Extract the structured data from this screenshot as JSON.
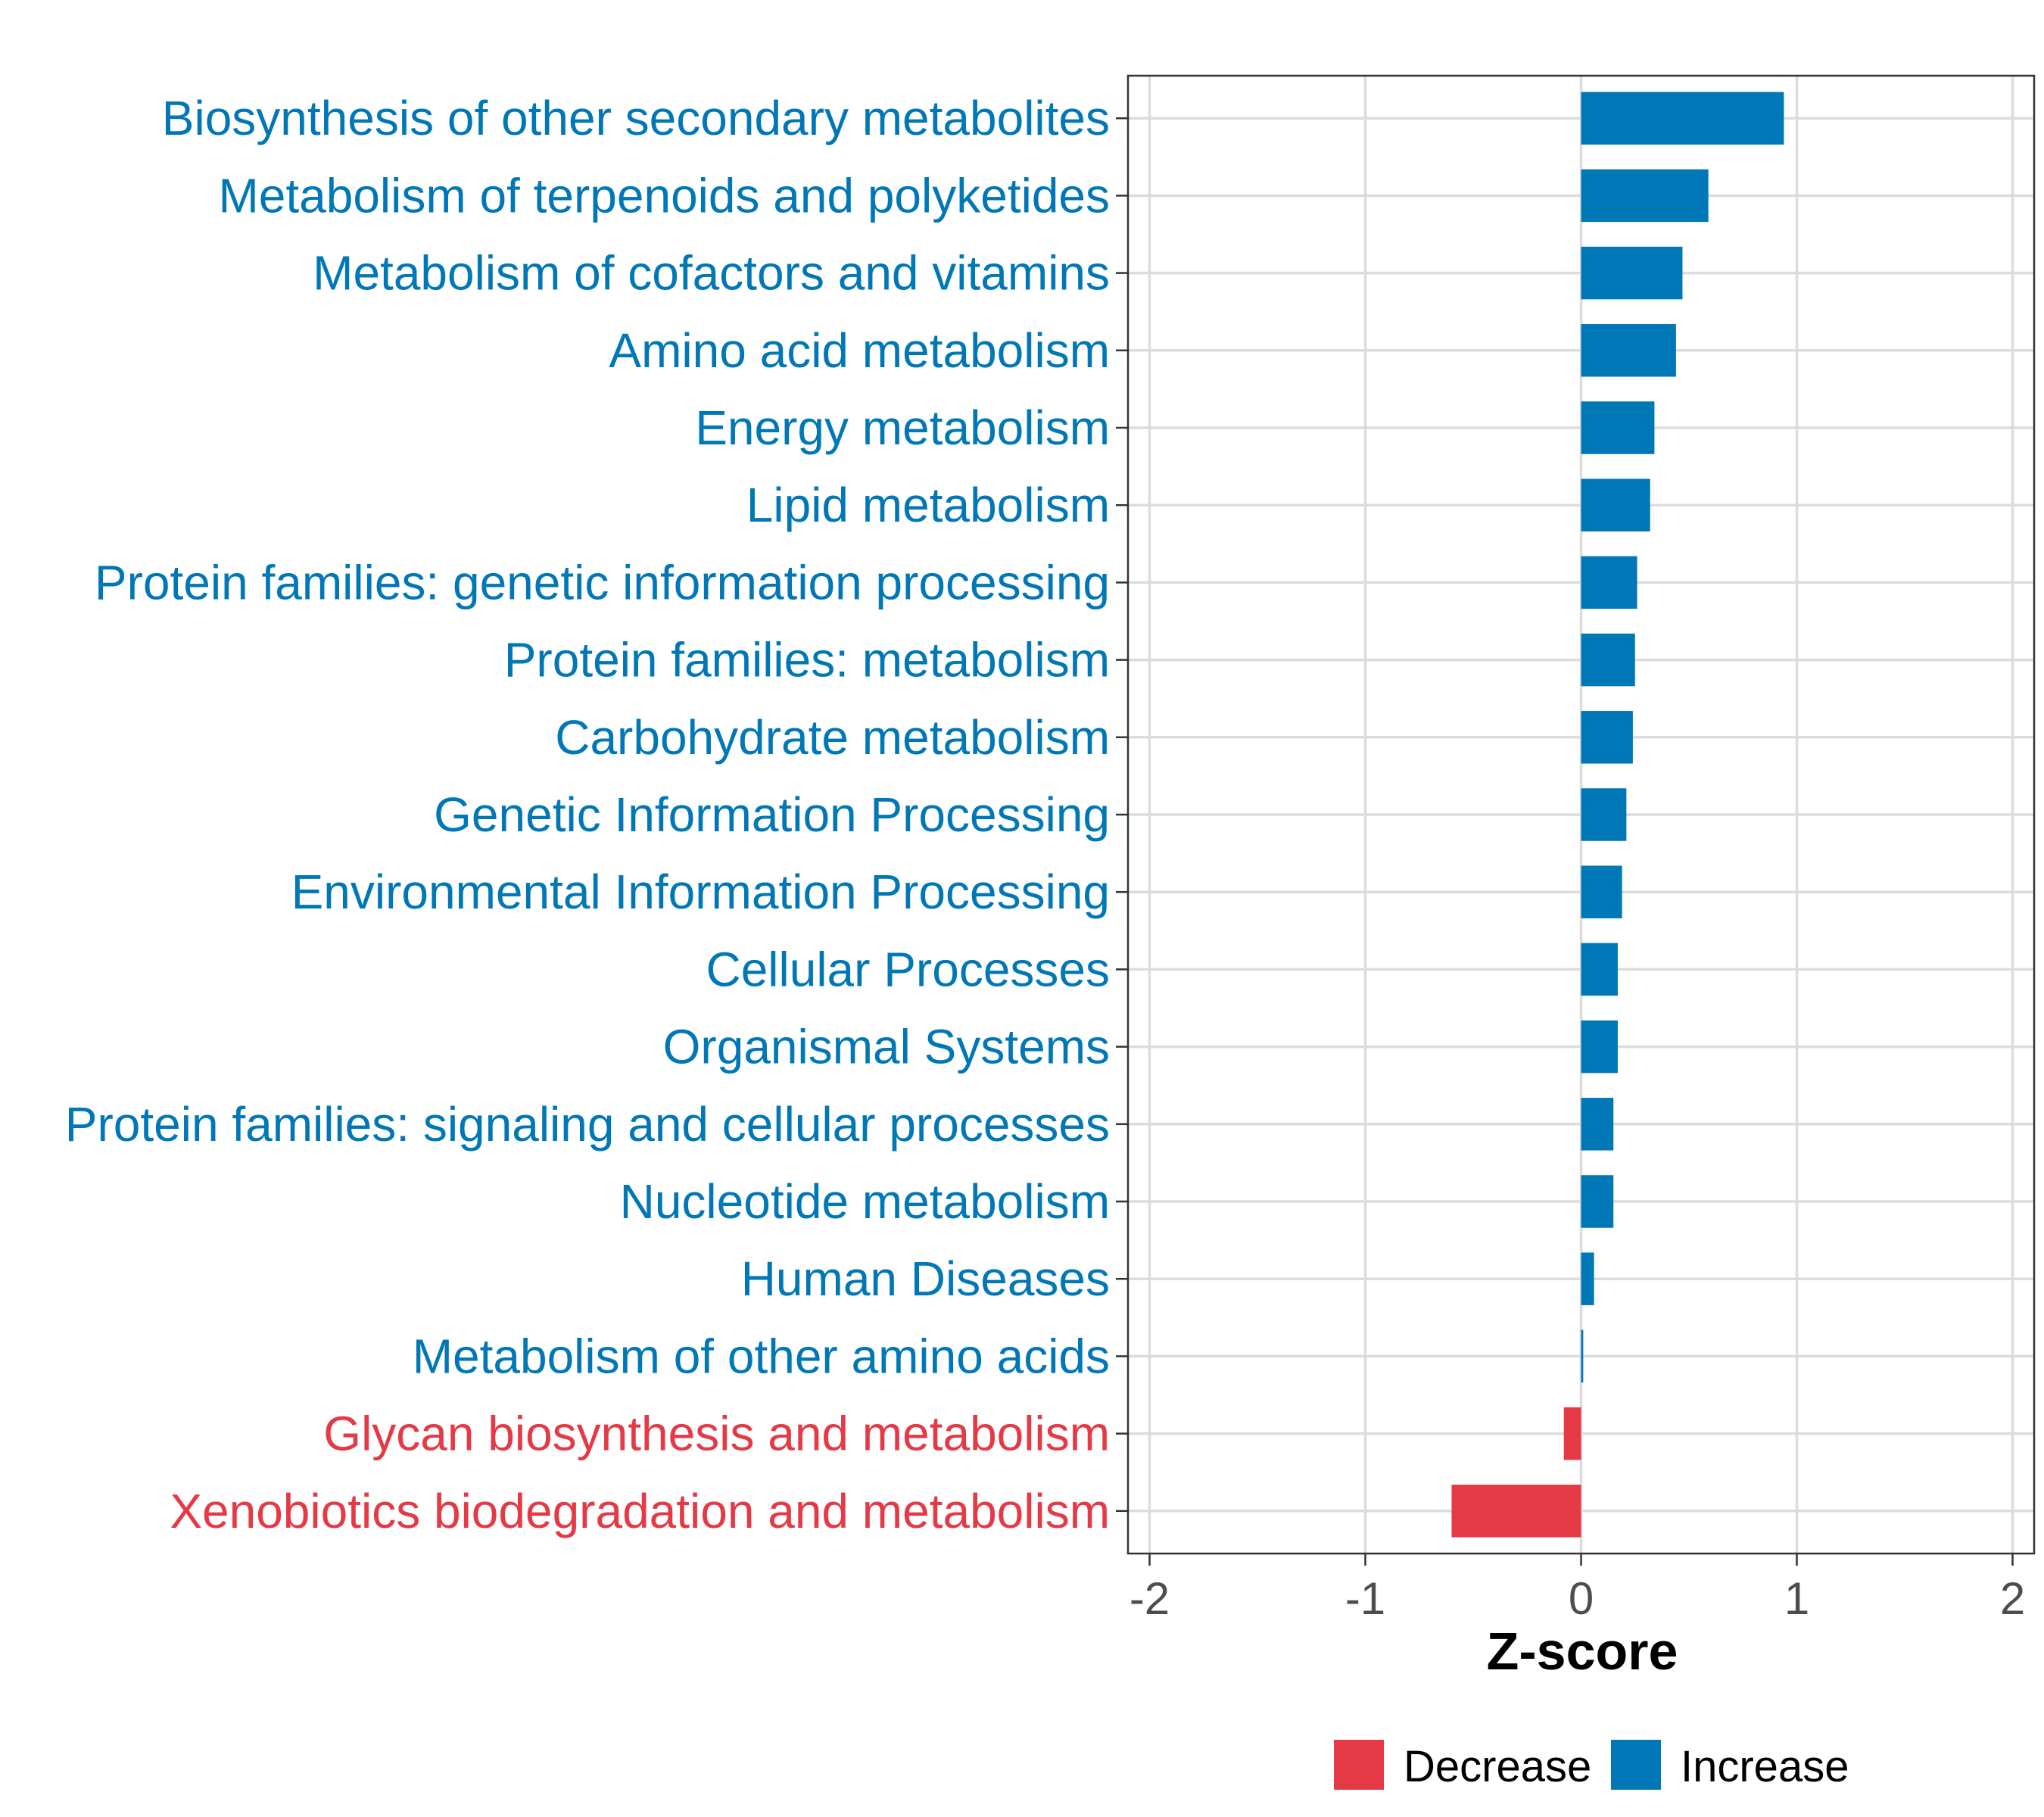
{
  "chart_data": {
    "type": "bar",
    "orientation": "horizontal",
    "title": "",
    "xlabel": "Z-score",
    "ylabel": "",
    "xlim": [
      -2.1,
      2.1
    ],
    "xticks": [
      -2,
      -1,
      0,
      1,
      2
    ],
    "xtick_labels": [
      "-2",
      "-1",
      "0",
      "1",
      "2"
    ],
    "grid": true,
    "legend_position": "bottom",
    "colors": {
      "Decrease": "#E63946",
      "Increase": "#0077B6"
    },
    "legend": [
      {
        "name": "Decrease",
        "color": "#E63946"
      },
      {
        "name": "Increase",
        "color": "#0077B6"
      }
    ],
    "categories": [
      "Biosynthesis of other secondary metabolites",
      "Metabolism of terpenoids and polyketides",
      "Metabolism of cofactors and vitamins",
      "Amino acid metabolism",
      "Energy metabolism",
      "Lipid metabolism",
      "Protein families: genetic information processing",
      "Protein families: metabolism",
      "Carbohydrate metabolism",
      "Genetic Information Processing",
      "Environmental Information Processing",
      "Cellular Processes",
      "Organismal Systems",
      "Protein families: signaling and cellular processes",
      "Nucleotide metabolism",
      "Human Diseases",
      "Metabolism of other amino acids",
      "Glycan biosynthesis and metabolism",
      "Xenobiotics biodegradation and metabolism"
    ],
    "values": [
      0.94,
      0.59,
      0.47,
      0.44,
      0.34,
      0.32,
      0.26,
      0.25,
      0.24,
      0.21,
      0.19,
      0.17,
      0.17,
      0.15,
      0.15,
      0.06,
      0.01,
      -0.08,
      -0.6
    ],
    "groups": [
      "Increase",
      "Increase",
      "Increase",
      "Increase",
      "Increase",
      "Increase",
      "Increase",
      "Increase",
      "Increase",
      "Increase",
      "Increase",
      "Increase",
      "Increase",
      "Increase",
      "Increase",
      "Increase",
      "Increase",
      "Decrease",
      "Decrease"
    ]
  }
}
